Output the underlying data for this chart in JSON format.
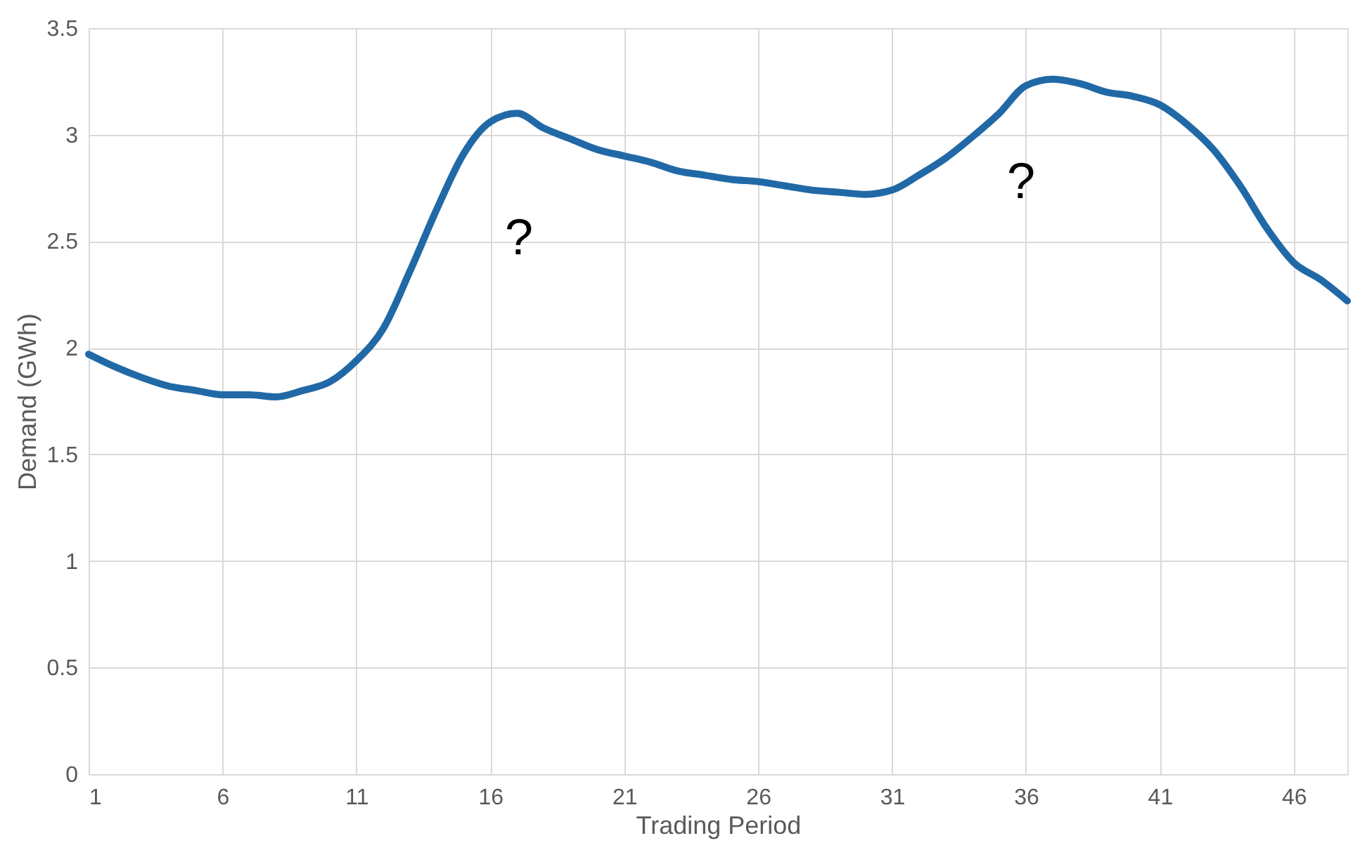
{
  "chart_data": {
    "type": "line",
    "xlabel": "Trading Period",
    "ylabel": "Demand (GWh)",
    "x": [
      1,
      2,
      3,
      4,
      5,
      6,
      7,
      8,
      9,
      10,
      11,
      12,
      13,
      14,
      15,
      16,
      17,
      18,
      19,
      20,
      21,
      22,
      23,
      24,
      25,
      26,
      27,
      28,
      29,
      30,
      31,
      32,
      33,
      34,
      35,
      36,
      37,
      38,
      39,
      40,
      41,
      42,
      43,
      44,
      45,
      46,
      47,
      48
    ],
    "series": [
      {
        "color": "#2169a6",
        "values": [
          1.97,
          1.91,
          1.86,
          1.82,
          1.8,
          1.78,
          1.78,
          1.77,
          1.8,
          1.84,
          1.94,
          2.09,
          2.36,
          2.65,
          2.91,
          3.06,
          3.1,
          3.03,
          2.98,
          2.93,
          2.9,
          2.87,
          2.83,
          2.81,
          2.79,
          2.78,
          2.76,
          2.74,
          2.73,
          2.72,
          2.74,
          2.81,
          2.89,
          2.99,
          3.1,
          3.23,
          3.26,
          3.24,
          3.2,
          3.18,
          3.14,
          3.05,
          2.93,
          2.76,
          2.56,
          2.4,
          2.32,
          2.22
        ]
      }
    ],
    "xlim": [
      1,
      48
    ],
    "xticks": [
      1,
      6,
      11,
      16,
      21,
      26,
      31,
      36,
      41,
      46
    ],
    "ylim": [
      0,
      3.5
    ],
    "yticks": [
      0,
      0.5,
      1,
      1.5,
      2,
      2.5,
      3,
      3.5
    ],
    "grid": true,
    "marker": "none",
    "line_style": "solid",
    "annotations": [
      "?",
      "?"
    ]
  }
}
